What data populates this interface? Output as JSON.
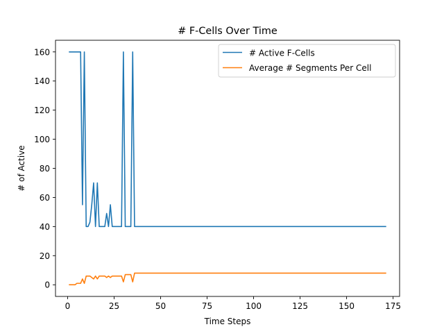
{
  "chart_data": {
    "type": "line",
    "title": "# F-Cells Over Time",
    "xlabel": "Time Steps",
    "ylabel": "# of Active",
    "xlim": [
      -6.5,
      178.5
    ],
    "ylim": [
      -8,
      168
    ],
    "xticks": [
      0,
      25,
      50,
      75,
      100,
      125,
      150,
      175
    ],
    "yticks": [
      0,
      20,
      40,
      60,
      80,
      100,
      120,
      140,
      160
    ],
    "grid": false,
    "legend_position": "top-right",
    "series": [
      {
        "name": "# Active F-Cells",
        "color": "#1f77b4",
        "x": [
          1,
          2,
          3,
          4,
          5,
          6,
          7,
          8,
          9,
          10,
          11,
          12,
          13,
          14,
          15,
          16,
          17,
          18,
          19,
          20,
          21,
          22,
          23,
          24,
          25,
          26,
          27,
          28,
          29,
          30,
          31,
          32,
          33,
          34,
          35,
          36,
          37,
          171
        ],
        "values": [
          160,
          160,
          160,
          160,
          160,
          160,
          160,
          55,
          160,
          40,
          40,
          43,
          55,
          70,
          40,
          70,
          40,
          40,
          40,
          40,
          49,
          40,
          55,
          40,
          40,
          40,
          40,
          40,
          40,
          160,
          40,
          40,
          40,
          40,
          160,
          40,
          40,
          40
        ]
      },
      {
        "name": "Average # Segments Per Cell",
        "color": "#ff7f0e",
        "x": [
          1,
          2,
          3,
          4,
          5,
          6,
          7,
          8,
          9,
          10,
          11,
          12,
          13,
          14,
          15,
          16,
          17,
          18,
          19,
          20,
          21,
          22,
          23,
          24,
          25,
          26,
          27,
          28,
          29,
          30,
          31,
          32,
          33,
          34,
          35,
          36,
          37,
          171
        ],
        "values": [
          0,
          0,
          0,
          0,
          1,
          1,
          1,
          4,
          1,
          6,
          6,
          6,
          5,
          4,
          6,
          4,
          6,
          6,
          6,
          6,
          5,
          6,
          5,
          6,
          6,
          6,
          6,
          6,
          6,
          2,
          7,
          7,
          7,
          7,
          2,
          8,
          8,
          8
        ]
      }
    ]
  }
}
